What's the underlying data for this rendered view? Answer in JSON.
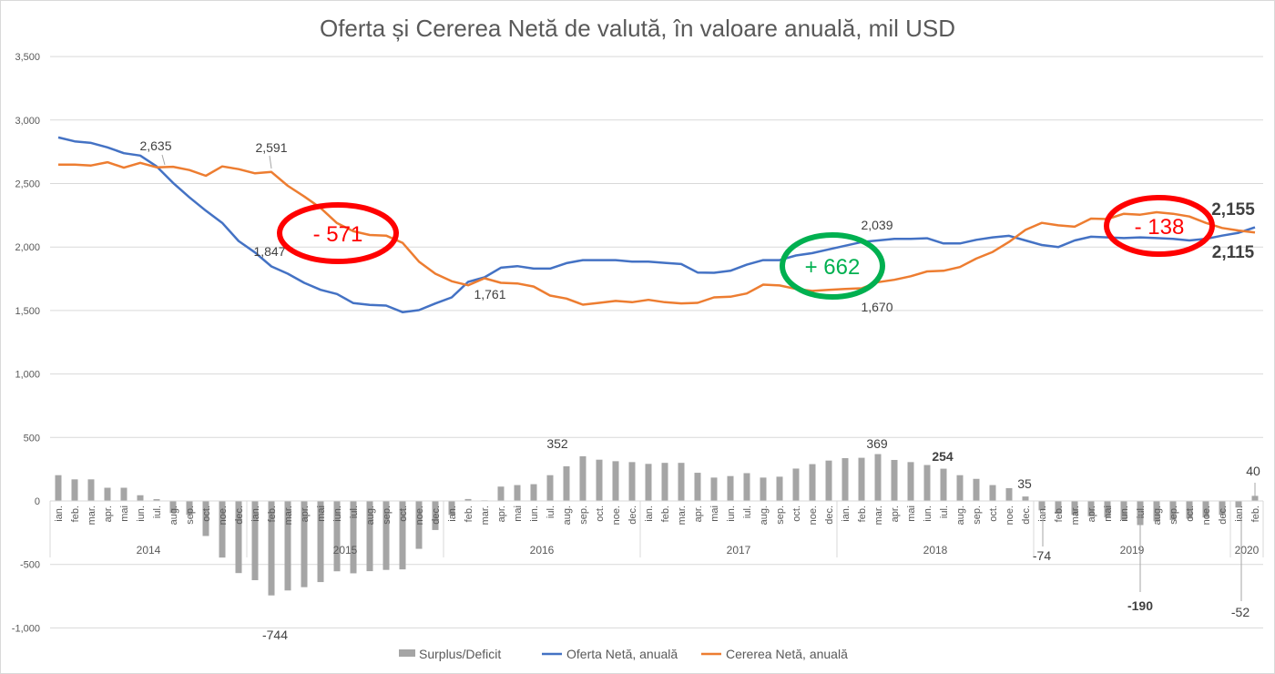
{
  "chart_data": {
    "type": "bar+line",
    "title": "Oferta și Cererea Netă de valută, în valoare anuală, mil USD",
    "ylim": [
      -1000,
      3500
    ],
    "yticks": [
      3500,
      3000,
      2500,
      2000,
      1500,
      1000,
      500,
      0,
      -500,
      -1000
    ],
    "ytick_labels": [
      "3,500",
      "3,000",
      "2,500",
      "2,000",
      "1,500",
      "1,000",
      "500",
      "0",
      "-500",
      "-1,000"
    ],
    "grid": true,
    "legend_position": "bottom",
    "months": [
      "ian.",
      "feb.",
      "mar.",
      "apr.",
      "mai",
      "iun.",
      "iul.",
      "aug.",
      "sep.",
      "oct.",
      "noe.",
      "dec."
    ],
    "years": [
      {
        "label": "2014",
        "count": 12
      },
      {
        "label": "2015",
        "count": 12
      },
      {
        "label": "2016",
        "count": 12
      },
      {
        "label": "2017",
        "count": 12
      },
      {
        "label": "2018",
        "count": 12
      },
      {
        "label": "2019",
        "count": 12
      },
      {
        "label": "2020",
        "count": 2
      }
    ],
    "series": [
      {
        "name": "Surplus/Deficit",
        "kind": "bar",
        "color": "#a5a5a5",
        "values": [
          203,
          170,
          170,
          104,
          104,
          45,
          14,
          -95,
          -110,
          -276,
          -446,
          -568,
          -624,
          -744,
          -705,
          -679,
          -639,
          -554,
          -570,
          -553,
          -543,
          -539,
          -377,
          -229,
          -110,
          15,
          5,
          113,
          125,
          132,
          203,
          273,
          352,
          325,
          313,
          306,
          292,
          300,
          300,
          222,
          184,
          196,
          219,
          184,
          191,
          255,
          290,
          318,
          337,
          340,
          369,
          323,
          306,
          283,
          254,
          203,
          174,
          125,
          101,
          35,
          -74,
          -100,
          -110,
          -120,
          -130,
          -150,
          -190,
          -160,
          -150,
          -140,
          -130,
          -110,
          -52,
          40
        ]
      },
      {
        "name": "Oferta Netă, anuală",
        "kind": "line",
        "color": "#4472c4",
        "values": [
          2863,
          2832,
          2820,
          2785,
          2739,
          2720,
          2635,
          2505,
          2391,
          2286,
          2190,
          2047,
          1957,
          1847,
          1790,
          1718,
          1663,
          1630,
          1558,
          1544,
          1539,
          1487,
          1503,
          1555,
          1603,
          1725,
          1761,
          1837,
          1849,
          1830,
          1830,
          1873,
          1897,
          1897,
          1897,
          1885,
          1885,
          1875,
          1866,
          1799,
          1797,
          1813,
          1861,
          1897,
          1897,
          1933,
          1952,
          1981,
          2010,
          2039,
          2052,
          2064,
          2064,
          2069,
          2028,
          2028,
          2057,
          2076,
          2088,
          2052,
          2016,
          1999,
          2052,
          2081,
          2076,
          2070,
          2076,
          2070,
          2064,
          2052,
          2064,
          2090,
          2112,
          2155
        ]
      },
      {
        "name": "Cererea Netă, anuală",
        "kind": "line",
        "color": "#ed7d31",
        "values": [
          2649,
          2649,
          2642,
          2668,
          2625,
          2663,
          2628,
          2632,
          2606,
          2561,
          2635,
          2613,
          2580,
          2591,
          2482,
          2398,
          2308,
          2189,
          2124,
          2095,
          2090,
          2033,
          1885,
          1790,
          1730,
          1699,
          1754,
          1718,
          1713,
          1689,
          1618,
          1594,
          1546,
          1560,
          1575,
          1565,
          1584,
          1565,
          1556,
          1560,
          1603,
          1608,
          1634,
          1704,
          1697,
          1670,
          1654,
          1663,
          1670,
          1675,
          1723,
          1742,
          1770,
          1808,
          1813,
          1842,
          1909,
          1961,
          2040,
          2135,
          2190,
          2171,
          2160,
          2224,
          2220,
          2262,
          2255,
          2274,
          2262,
          2240,
          2190,
          2150,
          2130,
          2115
        ]
      }
    ],
    "data_labels": [
      {
        "id": "l2635",
        "text": "2,635",
        "series": 1,
        "index": 6
      },
      {
        "id": "l2591",
        "text": "2,591",
        "series": 2,
        "index": 13
      },
      {
        "id": "l1847",
        "text": "1,847",
        "series": 1,
        "index": 13
      },
      {
        "id": "l1761",
        "text": "1,761",
        "series": 1,
        "index": 26
      },
      {
        "id": "l2039",
        "text": "2,039",
        "series": 1,
        "index": 49
      },
      {
        "id": "l1670",
        "text": "1,670",
        "series": 2,
        "index": 49
      },
      {
        "id": "l2155",
        "text": "2,155",
        "series": 1,
        "index": 73,
        "bold": true
      },
      {
        "id": "l2115",
        "text": "2,115",
        "series": 2,
        "index": 73,
        "bold": true
      },
      {
        "id": "b744",
        "text": "-744",
        "series": 0,
        "index": 13
      },
      {
        "id": "b352",
        "text": "352",
        "series": 0,
        "index": 32
      },
      {
        "id": "b369",
        "text": "369",
        "series": 0,
        "index": 50
      },
      {
        "id": "b254",
        "text": "254",
        "series": 0,
        "index": 54,
        "bold": true
      },
      {
        "id": "b35",
        "text": "35",
        "series": 0,
        "index": 59
      },
      {
        "id": "b74",
        "text": "-74",
        "series": 0,
        "index": 60
      },
      {
        "id": "b190",
        "text": "-190",
        "series": 0,
        "index": 66,
        "bold": true
      },
      {
        "id": "b52",
        "text": "-52",
        "series": 0,
        "index": 72
      },
      {
        "id": "b40",
        "text": "40",
        "series": 0,
        "index": 73
      }
    ],
    "annotations": [
      {
        "id": "a571",
        "text": "- 571",
        "color": "#ff0000",
        "text_color": "#ff0000"
      },
      {
        "id": "a662",
        "text": "+ 662",
        "color": "#00b050",
        "text_color": "#00b050"
      },
      {
        "id": "a138",
        "text": "- 138",
        "color": "#ff0000",
        "text_color": "#ff0000"
      }
    ]
  }
}
